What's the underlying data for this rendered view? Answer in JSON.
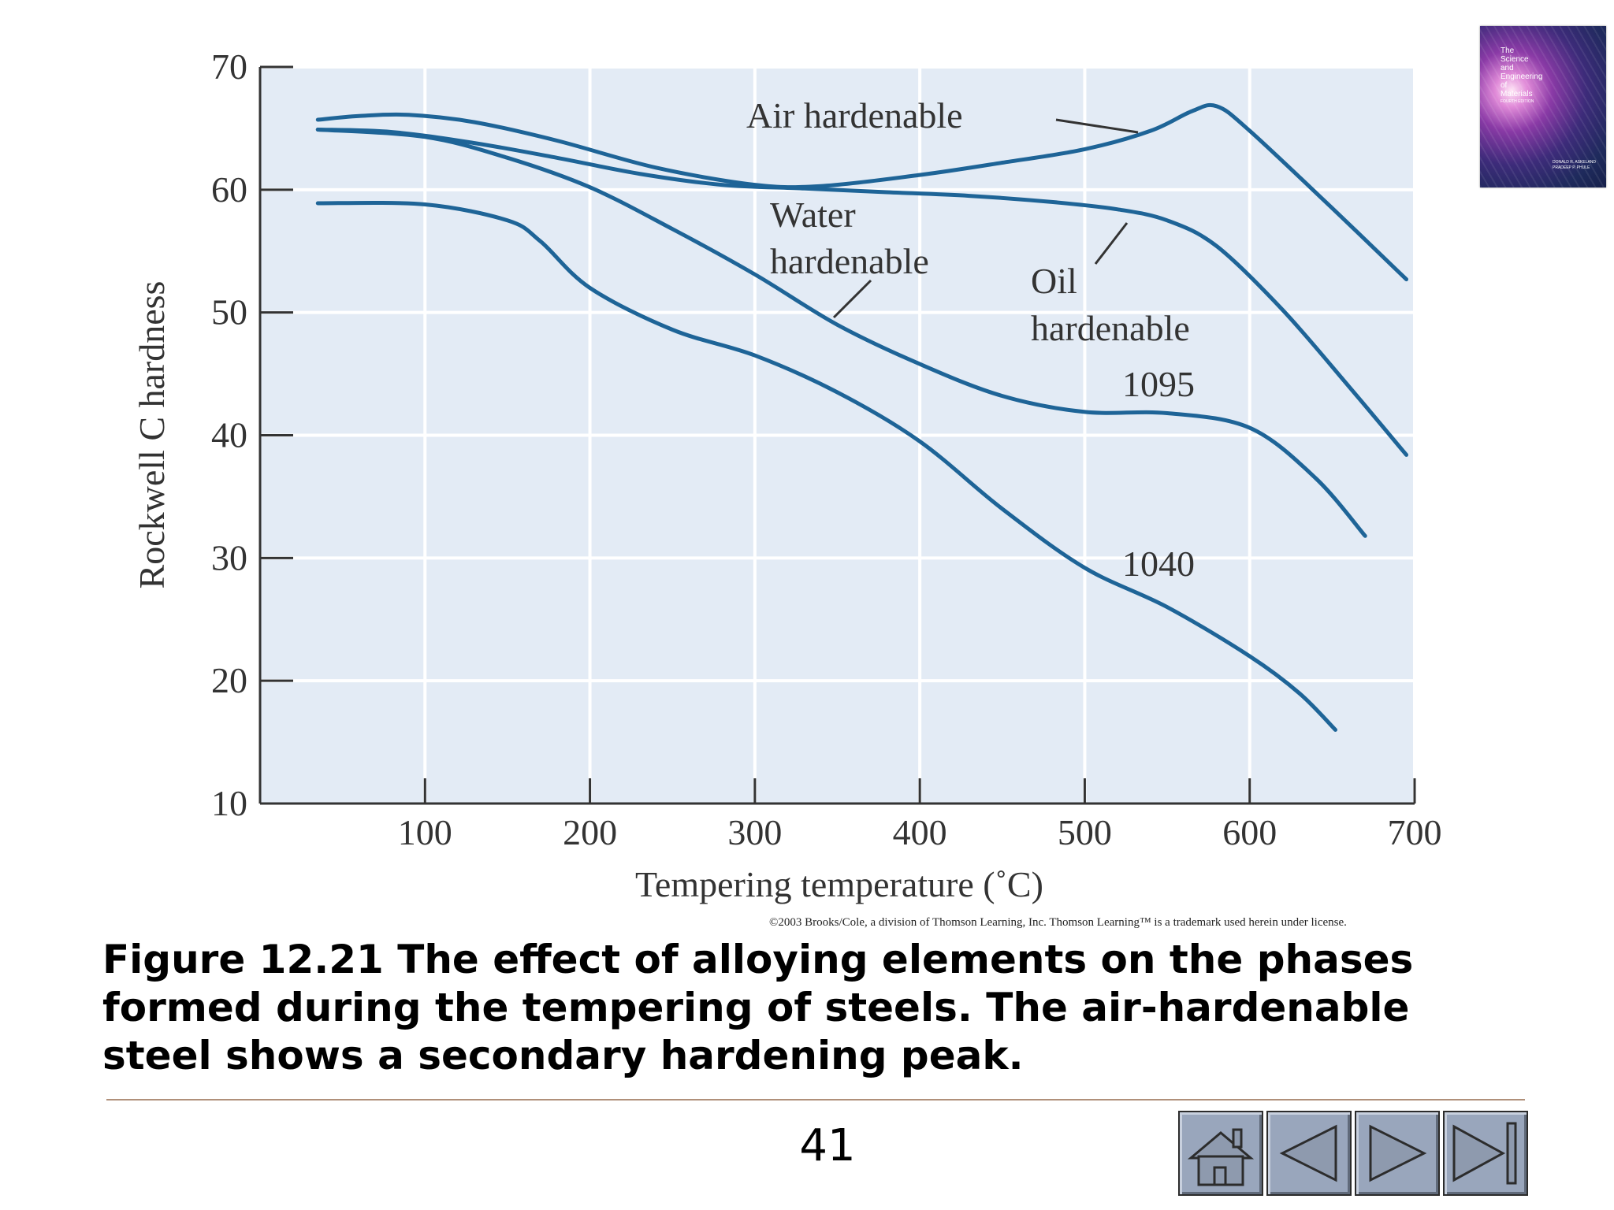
{
  "chart_data": {
    "type": "line",
    "xlabel": "Tempering temperature (˚C)",
    "ylabel": "Rockwell C hardness",
    "xlim": [
      0,
      700
    ],
    "ylim": [
      10,
      70
    ],
    "x_ticks": [
      100,
      200,
      300,
      400,
      500,
      600,
      700
    ],
    "y_ticks": [
      10,
      20,
      30,
      40,
      50,
      60,
      70
    ],
    "grid": true,
    "colors": {
      "plot_background": "#e3ebf5",
      "gridline": "#ffffff",
      "line": "#1e6497",
      "axis": "#333333"
    },
    "series": [
      {
        "name": "Air hardenable",
        "x": [
          35,
          60,
          90,
          130,
          180,
          240,
          300,
          340,
          400,
          450,
          500,
          540,
          565,
          580,
          600,
          650,
          695
        ],
        "y": [
          65.7,
          66.0,
          66.1,
          65.5,
          64.0,
          61.8,
          60.4,
          60.3,
          61.2,
          62.2,
          63.3,
          64.8,
          66.4,
          66.8,
          64.8,
          58.5,
          52.7
        ]
      },
      {
        "name": "Oil hardenable",
        "x": [
          35,
          80,
          130,
          180,
          230,
          280,
          330,
          380,
          430,
          480,
          520,
          550,
          580,
          620,
          660,
          695
        ],
        "y": [
          64.9,
          64.7,
          63.8,
          62.6,
          61.3,
          60.4,
          60.1,
          59.8,
          59.5,
          59.0,
          58.4,
          57.5,
          55.4,
          50.2,
          44.0,
          38.4
        ]
      },
      {
        "name": "Water hardenable",
        "label_line1": "Water",
        "label_line2": "hardenable",
        "x": [
          35,
          100,
          150,
          200,
          250,
          300,
          350,
          400,
          450,
          500,
          550,
          600,
          640,
          670
        ],
        "y": [
          64.9,
          64.3,
          62.6,
          60.2,
          56.8,
          53.1,
          49.0,
          45.8,
          43.2,
          41.9,
          41.8,
          40.6,
          36.5,
          31.8
        ]
      },
      {
        "name": "1040",
        "x": [
          35,
          100,
          150,
          170,
          200,
          250,
          300,
          350,
          400,
          450,
          500,
          550,
          600,
          630,
          652
        ],
        "y": [
          58.9,
          58.8,
          57.5,
          55.8,
          52.0,
          48.6,
          46.5,
          43.5,
          39.5,
          34.0,
          29.2,
          26.0,
          22.0,
          19.0,
          16.0
        ]
      }
    ],
    "annotations": [
      "1095"
    ],
    "credit": "©2003 Brooks/Cole, a division of Thomson Learning, Inc.  Thomson Learning™ is a trademark used herein under license."
  },
  "book_cover": {
    "title_lines": [
      "The",
      "Science",
      "and",
      "Engineering",
      "of",
      "Materials",
      "FOURTH EDITION"
    ],
    "authors": [
      "DONALD R. ASKELAND",
      "PRADEEP P. PHULE"
    ]
  },
  "caption": {
    "text": "Figure 12.21  The effect of alloying elements on the phases formed during the tempering of steels.  The air-hardenable steel shows a secondary hardening peak."
  },
  "footer": {
    "page_number": "41"
  },
  "navigation": {
    "buttons": [
      "home-icon",
      "previous-icon",
      "next-icon",
      "last-icon"
    ],
    "button_color": "#99a6bc"
  }
}
